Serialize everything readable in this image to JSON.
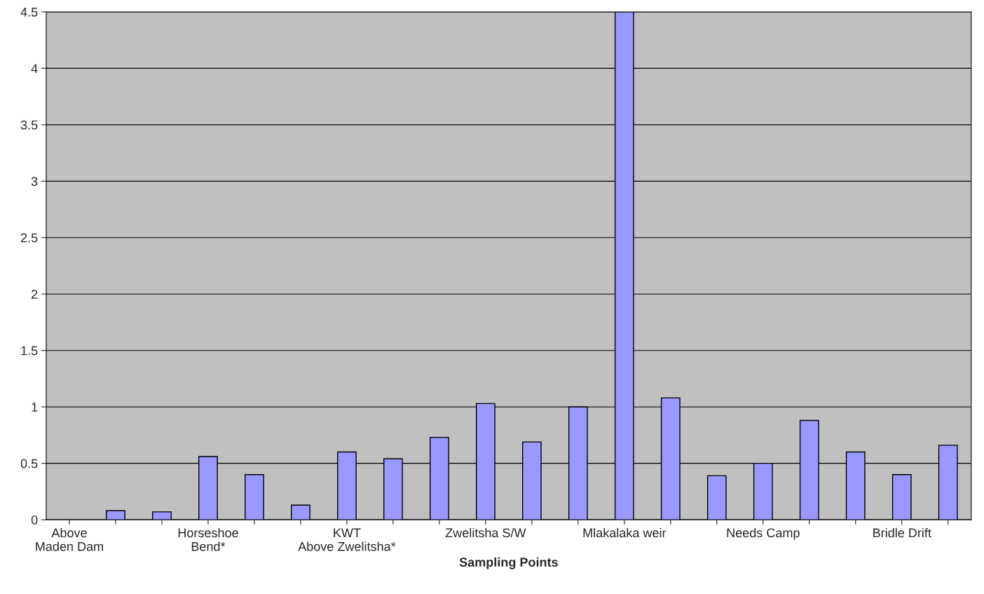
{
  "chart_data": {
    "type": "bar",
    "xlabel": "Sampling Points",
    "categories": [
      "Above Maden Dam",
      null,
      null,
      "Horseshoe Bend*",
      null,
      null,
      "KWT Above Zwelitsha*",
      null,
      null,
      "Zwelitsha S/W",
      null,
      null,
      "Mlakalaka weir",
      null,
      null,
      "Needs Camp",
      null,
      null,
      "Bridle Drift",
      null
    ],
    "values": [
      null,
      0.08,
      0.07,
      0.56,
      0.4,
      0.13,
      0.6,
      0.54,
      0.73,
      1.03,
      0.69,
      1.0,
      4.5,
      1.08,
      0.39,
      0.5,
      0.88,
      0.6,
      0.4,
      0.66
    ],
    "color": "#9999ff",
    "ylim": [
      0,
      4.5
    ],
    "yticks": [
      0,
      0.5,
      1,
      1.5,
      2,
      2.5,
      3,
      3.5,
      4,
      4.5
    ],
    "grid": "y",
    "legend": false
  }
}
